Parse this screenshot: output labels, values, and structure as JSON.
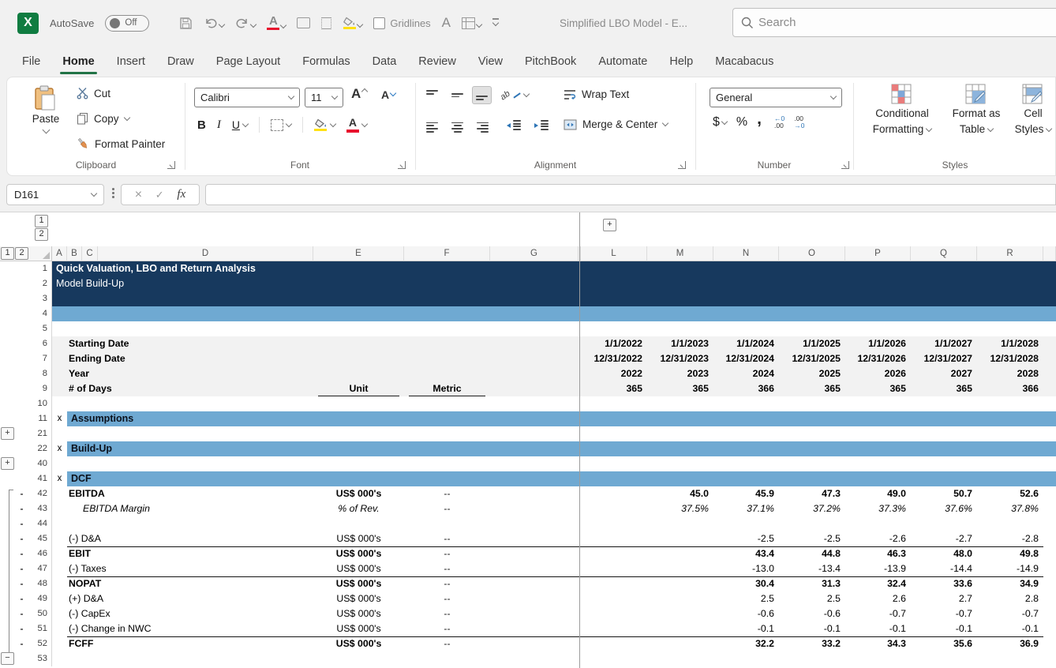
{
  "titlebar": {
    "autosave_label": "AutoSave",
    "autosave_state": "Off",
    "gridlines_label": "Gridlines",
    "doc_title": "Simplified LBO Model  -  E...",
    "search_placeholder": "Search"
  },
  "tabs": [
    {
      "label": "File"
    },
    {
      "label": "Home",
      "active": true
    },
    {
      "label": "Insert"
    },
    {
      "label": "Draw"
    },
    {
      "label": "Page Layout"
    },
    {
      "label": "Formulas"
    },
    {
      "label": "Data"
    },
    {
      "label": "Review"
    },
    {
      "label": "View"
    },
    {
      "label": "PitchBook"
    },
    {
      "label": "Automate"
    },
    {
      "label": "Help"
    },
    {
      "label": "Macabacus"
    }
  ],
  "ribbon": {
    "clipboard": {
      "title": "Clipboard",
      "paste": "Paste",
      "cut": "Cut",
      "copy": "Copy",
      "format_painter": "Format Painter"
    },
    "font": {
      "title": "Font",
      "font_name": "Calibri",
      "font_size": "11"
    },
    "alignment": {
      "title": "Alignment",
      "wrap_text": "Wrap Text",
      "merge_center": "Merge & Center"
    },
    "number": {
      "title": "Number",
      "format": "General"
    },
    "styles": {
      "title": "Styles",
      "conditional_1": "Conditional",
      "conditional_2": "Formatting",
      "format_table_1": "Format as",
      "format_table_2": "Table",
      "cell_styles_1": "Cell",
      "cell_styles_2": "Styles"
    }
  },
  "formula_bar": {
    "name_box": "D161",
    "formula": ""
  },
  "glyphs": {
    "logo_x": "X",
    "plus": "+",
    "minus": "−",
    "bold": "B",
    "italic": "I",
    "underline": "U",
    "dollar": "$",
    "percent": "%",
    "comma": ",",
    "fx": "fx",
    "cancel": "×",
    "enter": "✓",
    "font_letter": "A",
    "orientation_ab": "ab",
    "inc_dec_top": "←0",
    "inc_dec_bot": ".00",
    "dec_dec_top": ".00",
    "dec_dec_bot": "→0"
  },
  "sheet": {
    "colors": {
      "navy": "#17395E",
      "section_blue": "#6FA9D2",
      "band_gray": "#F2F2F2"
    },
    "outline_levels": [
      "1",
      "2"
    ],
    "left_columns": [
      "A",
      "B",
      "C",
      "D",
      "E",
      "F",
      "G"
    ],
    "right_columns": [
      "L",
      "M",
      "N",
      "O",
      "P",
      "Q",
      "R"
    ],
    "rows": [
      {
        "n": "1",
        "band": "navy",
        "label": "Quick Valuation, LBO and Return Analysis",
        "bold": true
      },
      {
        "n": "2",
        "band": "navy",
        "label": "Model Build-Up"
      },
      {
        "n": "3",
        "band": "navy"
      },
      {
        "n": "4",
        "band": "bluefull"
      },
      {
        "n": "5"
      },
      {
        "n": "6",
        "band": "gray",
        "label": "Starting Date",
        "bold": true,
        "values": {
          "L": "1/1/2022",
          "M": "1/1/2023",
          "N": "1/1/2024",
          "O": "1/1/2025",
          "P": "1/1/2026",
          "Q": "1/1/2027",
          "R": "1/1/2028"
        }
      },
      {
        "n": "7",
        "band": "gray",
        "label": "Ending Date",
        "bold": true,
        "values": {
          "L": "12/31/2022",
          "M": "12/31/2023",
          "N": "12/31/2024",
          "O": "12/31/2025",
          "P": "12/31/2026",
          "Q": "12/31/2027",
          "R": "12/31/2028"
        }
      },
      {
        "n": "8",
        "band": "gray",
        "label": "Year",
        "bold": true,
        "values": {
          "L": "2022",
          "M": "2023",
          "N": "2024",
          "O": "2025",
          "P": "2026",
          "Q": "2027",
          "R": "2028"
        }
      },
      {
        "n": "9",
        "band": "gray",
        "label": "# of Days",
        "bold": true,
        "unit": "Unit",
        "metric": "Metric",
        "header_cells": true,
        "values": {
          "L": "365",
          "M": "365",
          "N": "366",
          "O": "365",
          "P": "365",
          "Q": "365",
          "R": "366"
        }
      },
      {
        "n": "10"
      },
      {
        "n": "11",
        "band": "section",
        "marker": "x",
        "label": "Assumptions"
      },
      {
        "n": "21",
        "outline": "plus"
      },
      {
        "n": "22",
        "band": "section",
        "marker": "x",
        "label": "Build-Up"
      },
      {
        "n": "40",
        "outline": "plus"
      },
      {
        "n": "41",
        "band": "section",
        "marker": "x",
        "label": "DCF"
      },
      {
        "n": "42",
        "label": "EBITDA",
        "bold": true,
        "unit": "US$ 000's",
        "metric": "--",
        "dot": true,
        "bracket": "start",
        "values": {
          "M": "45.0",
          "N": "45.9",
          "O": "47.3",
          "P": "49.0",
          "Q": "50.7",
          "R": "52.6"
        }
      },
      {
        "n": "43",
        "label": "EBITDA Margin",
        "italic": true,
        "indent": true,
        "unit": "% of Rev.",
        "metric": "--",
        "dot": true,
        "bracket": "mid",
        "values": {
          "M": "37.5%",
          "N": "37.1%",
          "O": "37.2%",
          "P": "37.3%",
          "Q": "37.6%",
          "R": "37.8%"
        }
      },
      {
        "n": "44",
        "dot": true,
        "bracket": "mid"
      },
      {
        "n": "45",
        "label": "(-) D&A",
        "unit": "US$ 000's",
        "metric": "--",
        "dot": true,
        "bracket": "mid",
        "values": {
          "N": "-2.5",
          "O": "-2.5",
          "P": "-2.6",
          "Q": "-2.7",
          "R": "-2.8"
        }
      },
      {
        "n": "46",
        "label": "EBIT",
        "bold": true,
        "unit": "US$ 000's",
        "metric": "--",
        "dot": true,
        "bracket": "mid",
        "border_top": true,
        "values": {
          "N": "43.4",
          "O": "44.8",
          "P": "46.3",
          "Q": "48.0",
          "R": "49.8"
        }
      },
      {
        "n": "47",
        "label": "(-) Taxes",
        "unit": "US$ 000's",
        "metric": "--",
        "dot": true,
        "bracket": "mid",
        "values": {
          "N": "-13.0",
          "O": "-13.4",
          "P": "-13.9",
          "Q": "-14.4",
          "R": "-14.9"
        }
      },
      {
        "n": "48",
        "label": "NOPAT",
        "bold": true,
        "unit": "US$ 000's",
        "metric": "--",
        "dot": true,
        "bracket": "mid",
        "border_top": true,
        "values": {
          "N": "30.4",
          "O": "31.3",
          "P": "32.4",
          "Q": "33.6",
          "R": "34.9"
        }
      },
      {
        "n": "49",
        "label": "(+) D&A",
        "unit": "US$ 000's",
        "metric": "--",
        "dot": true,
        "bracket": "mid",
        "values": {
          "N": "2.5",
          "O": "2.5",
          "P": "2.6",
          "Q": "2.7",
          "R": "2.8"
        }
      },
      {
        "n": "50",
        "label": "(-) CapEx",
        "unit": "US$ 000's",
        "metric": "--",
        "dot": true,
        "bracket": "mid",
        "values": {
          "N": "-0.6",
          "O": "-0.6",
          "P": "-0.7",
          "Q": "-0.7",
          "R": "-0.7"
        }
      },
      {
        "n": "51",
        "label": "(-) Change in NWC",
        "unit": "US$ 000's",
        "metric": "--",
        "dot": true,
        "bracket": "mid",
        "values": {
          "N": "-0.1",
          "O": "-0.1",
          "P": "-0.1",
          "Q": "-0.1",
          "R": "-0.1"
        }
      },
      {
        "n": "52",
        "label": "FCFF",
        "bold": true,
        "unit": "US$ 000's",
        "metric": "--",
        "dot": true,
        "bracket": "mid",
        "border_top": true,
        "values": {
          "N": "32.2",
          "O": "33.2",
          "P": "34.3",
          "Q": "35.6",
          "R": "36.9"
        }
      },
      {
        "n": "53",
        "outline": "minus",
        "bracket": "end"
      }
    ]
  }
}
